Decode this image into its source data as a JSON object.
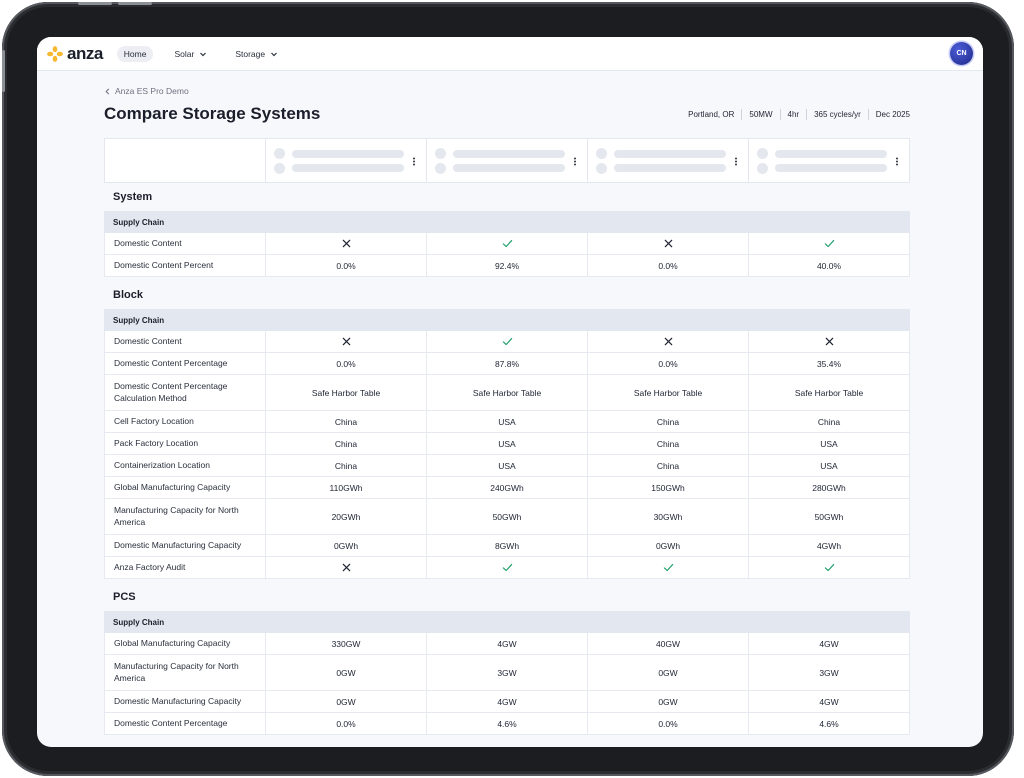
{
  "nav": {
    "logo": "anza",
    "items": [
      {
        "label": "Home",
        "active": true
      },
      {
        "label": "Solar",
        "dropdown": true
      },
      {
        "label": "Storage",
        "dropdown": true
      }
    ],
    "avatar": "CN"
  },
  "breadcrumb": "Anza ES Pro Demo",
  "page_title": "Compare Storage Systems",
  "meta": [
    "Portland, OR",
    "50MW",
    "4hr",
    "365 cycles/yr",
    "Dec 2025"
  ],
  "sections": [
    {
      "title": "System",
      "subgroups": [
        {
          "title": "Supply Chain",
          "rows": [
            {
              "label": "Domestic Content",
              "values": [
                "x",
                "check",
                "x",
                "check"
              ]
            },
            {
              "label": "Domestic Content Percent",
              "values": [
                "0.0%",
                "92.4%",
                "0.0%",
                "40.0%"
              ]
            }
          ]
        }
      ]
    },
    {
      "title": "Block",
      "subgroups": [
        {
          "title": "Supply Chain",
          "rows": [
            {
              "label": "Domestic Content",
              "values": [
                "x",
                "check",
                "x",
                "x"
              ]
            },
            {
              "label": "Domestic Content Percentage",
              "values": [
                "0.0%",
                "87.8%",
                "0.0%",
                "35.4%"
              ]
            },
            {
              "label": "Domestic Content Percentage Calculation Method",
              "values": [
                "Safe Harbor Table",
                "Safe Harbor Table",
                "Safe Harbor Table",
                "Safe Harbor Table"
              ]
            },
            {
              "label": "Cell Factory Location",
              "values": [
                "China",
                "USA",
                "China",
                "China"
              ]
            },
            {
              "label": "Pack Factory Location",
              "values": [
                "China",
                "USA",
                "China",
                "USA"
              ]
            },
            {
              "label": "Containerization Location",
              "values": [
                "China",
                "USA",
                "China",
                "USA"
              ]
            },
            {
              "label": "Global Manufacturing Capacity",
              "values": [
                "110GWh",
                "240GWh",
                "150GWh",
                "280GWh"
              ]
            },
            {
              "label": "Manufacturing Capacity for North America",
              "values": [
                "20GWh",
                "50GWh",
                "30GWh",
                "50GWh"
              ]
            },
            {
              "label": "Domestic Manufacturing Capacity",
              "values": [
                "0GWh",
                "8GWh",
                "0GWh",
                "4GWh"
              ]
            },
            {
              "label": "Anza Factory Audit",
              "values": [
                "x",
                "check",
                "check",
                "check"
              ]
            }
          ]
        }
      ]
    },
    {
      "title": "PCS",
      "subgroups": [
        {
          "title": "Supply Chain",
          "rows": [
            {
              "label": "Global Manufacturing Capacity",
              "values": [
                "330GW",
                "4GW",
                "40GW",
                "4GW"
              ]
            },
            {
              "label": "Manufacturing Capacity for North America",
              "values": [
                "0GW",
                "3GW",
                "0GW",
                "3GW"
              ]
            },
            {
              "label": "Domestic Manufacturing Capacity",
              "values": [
                "0GW",
                "4GW",
                "0GW",
                "4GW"
              ]
            },
            {
              "label": "Domestic Content Percentage",
              "values": [
                "0.0%",
                "4.6%",
                "0.0%",
                "4.6%"
              ]
            }
          ]
        }
      ]
    }
  ],
  "colors": {
    "check": "#22a06b",
    "x": "#1f2433",
    "subheader_bg": "#e3e7f0",
    "logo_petal": "#f5b82e"
  }
}
